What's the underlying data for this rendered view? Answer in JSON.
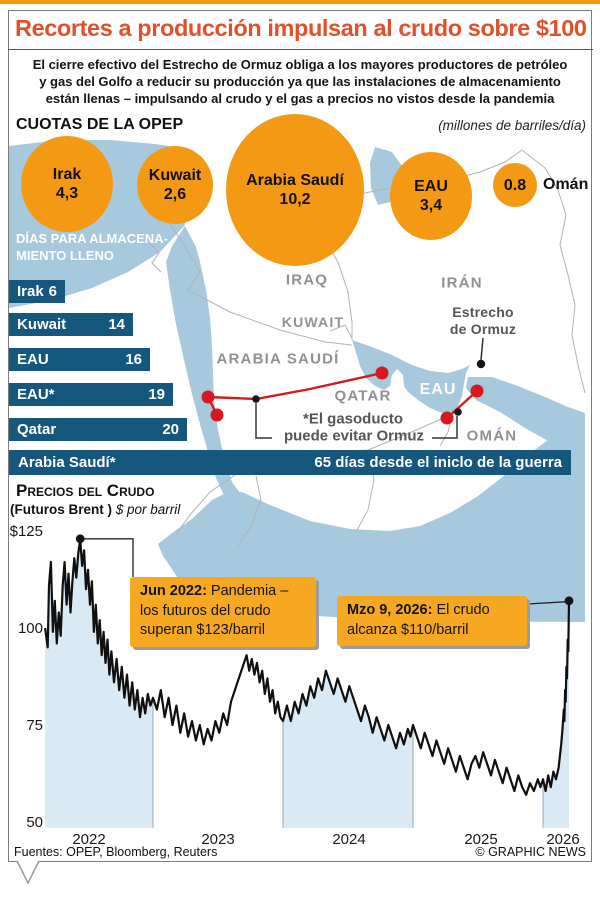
{
  "header": {
    "title": "Recortes a producción impulsan al crudo sobre $100",
    "intro_lines": [
      "El cierre efectivo del Estrecho de Ormuz obliga a los mayores productores de petróleo",
      "y gas del Golfo a reducir su producción ya que las instalaciones de almacenamiento",
      "están llenas – impulsando al crudo y el gas a precios no vistos desde la pandemia"
    ]
  },
  "opec": {
    "heading": "CUOTAS DE LA OPEP",
    "unit": "(millones de barriles/día)",
    "circles": [
      {
        "name": "Irak",
        "value": "4,3"
      },
      {
        "name": "Kuwait",
        "value": "2,6"
      },
      {
        "name": "Arabia Saudí",
        "value": "10,2"
      },
      {
        "name": "EAU",
        "value": "3,4"
      },
      {
        "name": "",
        "value": "0.8"
      }
    ],
    "oman_label": "Omán"
  },
  "storage": {
    "heading_lines": [
      "DÍAS PARA ALMACENA-",
      "MIENTO LLENO"
    ],
    "bars": [
      {
        "label": "Irak",
        "value": "6"
      },
      {
        "label": "Kuwait",
        "value": "14"
      },
      {
        "label": "EAU",
        "value": "16"
      },
      {
        "label": "EAU*",
        "value": "19"
      },
      {
        "label": "Qatar",
        "value": "20"
      }
    ],
    "saudi_bar": {
      "label": "Arabia Saudí*",
      "note": "65 días desde el iniclo de la guerra"
    }
  },
  "map": {
    "labels": {
      "iraq": "IRAQ",
      "iran": "IRÁN",
      "kuwait": "KUWAIT",
      "saudi": "ARABIA SAUDÍ",
      "qatar": "QATAR",
      "eau": "EAU",
      "oman": "OMÁN"
    },
    "strait_lines": [
      "Estrecho",
      "de Ormuz"
    ],
    "pipeline_note_lines": [
      "*El gasoducto",
      "puede evitar Ormuz"
    ]
  },
  "chart_data": {
    "type": "line",
    "title": "Precios del Crudo",
    "subtitle_bold": "(Futuros Brent )",
    "subtitle_italic": " $ por barril",
    "ylabel": "$ por barril",
    "ylim": [
      50,
      125
    ],
    "yticks": [
      {
        "v": 125,
        "label": "$125"
      },
      {
        "v": 100,
        "label": "100"
      },
      {
        "v": 75,
        "label": "75"
      },
      {
        "v": 50,
        "label": "50"
      }
    ],
    "xticks": [
      "2022",
      "2023",
      "2024",
      "2025",
      "2026"
    ],
    "grid": false,
    "legend": "none",
    "fill_bands": [
      [
        2022.17,
        2023.0
      ],
      [
        2024.0,
        2025.0
      ],
      [
        2026.0,
        2026.2
      ]
    ],
    "year_lines": [
      2023,
      2024,
      2025,
      2026
    ],
    "series": [
      {
        "name": "Brent",
        "points": [
          [
            2022.17,
            100
          ],
          [
            2022.19,
            95
          ],
          [
            2022.2,
            111
          ],
          [
            2022.215,
            117
          ],
          [
            2022.23,
            99
          ],
          [
            2022.245,
            107
          ],
          [
            2022.26,
            96
          ],
          [
            2022.275,
            104
          ],
          [
            2022.29,
            98
          ],
          [
            2022.305,
            111
          ],
          [
            2022.32,
            117
          ],
          [
            2022.335,
            106
          ],
          [
            2022.35,
            114
          ],
          [
            2022.365,
            104
          ],
          [
            2022.38,
            112
          ],
          [
            2022.395,
            118
          ],
          [
            2022.41,
            113
          ],
          [
            2022.425,
            119
          ],
          [
            2022.44,
            123
          ],
          [
            2022.455,
            116
          ],
          [
            2022.47,
            120
          ],
          [
            2022.485,
            110
          ],
          [
            2022.5,
            115
          ],
          [
            2022.515,
            106
          ],
          [
            2022.53,
            112
          ],
          [
            2022.545,
            99
          ],
          [
            2022.56,
            106
          ],
          [
            2022.575,
            96
          ],
          [
            2022.59,
            102
          ],
          [
            2022.605,
            93
          ],
          [
            2022.62,
            99
          ],
          [
            2022.635,
            91
          ],
          [
            2022.65,
            97
          ],
          [
            2022.665,
            88
          ],
          [
            2022.68,
            94
          ],
          [
            2022.7,
            86
          ],
          [
            2022.72,
            92
          ],
          [
            2022.74,
            84
          ],
          [
            2022.76,
            90
          ],
          [
            2022.78,
            82
          ],
          [
            2022.8,
            88
          ],
          [
            2022.82,
            80
          ],
          [
            2022.84,
            86
          ],
          [
            2022.86,
            79
          ],
          [
            2022.88,
            84
          ],
          [
            2022.9,
            77
          ],
          [
            2022.92,
            82
          ],
          [
            2022.94,
            78
          ],
          [
            2022.96,
            83
          ],
          [
            2022.98,
            80
          ],
          [
            2023.0,
            82
          ],
          [
            2023.03,
            79
          ],
          [
            2023.06,
            84
          ],
          [
            2023.09,
            77
          ],
          [
            2023.12,
            82
          ],
          [
            2023.15,
            75
          ],
          [
            2023.18,
            80
          ],
          [
            2023.21,
            73
          ],
          [
            2023.24,
            78
          ],
          [
            2023.27,
            72
          ],
          [
            2023.3,
            76
          ],
          [
            2023.33,
            71
          ],
          [
            2023.36,
            75
          ],
          [
            2023.39,
            70
          ],
          [
            2023.42,
            74
          ],
          [
            2023.45,
            71
          ],
          [
            2023.48,
            76
          ],
          [
            2023.51,
            73
          ],
          [
            2023.54,
            78
          ],
          [
            2023.57,
            75
          ],
          [
            2023.6,
            81
          ],
          [
            2023.63,
            84
          ],
          [
            2023.66,
            87
          ],
          [
            2023.69,
            90
          ],
          [
            2023.72,
            93
          ],
          [
            2023.74,
            89
          ],
          [
            2023.76,
            92
          ],
          [
            2023.78,
            88
          ],
          [
            2023.8,
            91
          ],
          [
            2023.82,
            86
          ],
          [
            2023.84,
            89
          ],
          [
            2023.86,
            83
          ],
          [
            2023.88,
            87
          ],
          [
            2023.9,
            81
          ],
          [
            2023.92,
            84
          ],
          [
            2023.94,
            78
          ],
          [
            2023.96,
            81
          ],
          [
            2023.98,
            77
          ],
          [
            2024.0,
            76
          ],
          [
            2024.03,
            80
          ],
          [
            2024.06,
            76
          ],
          [
            2024.09,
            81
          ],
          [
            2024.12,
            78
          ],
          [
            2024.15,
            83
          ],
          [
            2024.18,
            80
          ],
          [
            2024.21,
            85
          ],
          [
            2024.24,
            82
          ],
          [
            2024.27,
            87
          ],
          [
            2024.3,
            84
          ],
          [
            2024.33,
            89
          ],
          [
            2024.36,
            86
          ],
          [
            2024.39,
            83
          ],
          [
            2024.42,
            87
          ],
          [
            2024.45,
            84
          ],
          [
            2024.48,
            81
          ],
          [
            2024.51,
            85
          ],
          [
            2024.54,
            82
          ],
          [
            2024.57,
            79
          ],
          [
            2024.6,
            76
          ],
          [
            2024.63,
            80
          ],
          [
            2024.66,
            77
          ],
          [
            2024.69,
            73
          ],
          [
            2024.72,
            77
          ],
          [
            2024.75,
            74
          ],
          [
            2024.78,
            71
          ],
          [
            2024.81,
            75
          ],
          [
            2024.84,
            72
          ],
          [
            2024.87,
            69
          ],
          [
            2024.9,
            73
          ],
          [
            2024.93,
            70
          ],
          [
            2024.96,
            74
          ],
          [
            2024.98,
            72
          ],
          [
            2025.0,
            75
          ],
          [
            2025.03,
            72
          ],
          [
            2025.06,
            69
          ],
          [
            2025.09,
            73
          ],
          [
            2025.12,
            70
          ],
          [
            2025.15,
            67
          ],
          [
            2025.18,
            71
          ],
          [
            2025.21,
            68
          ],
          [
            2025.24,
            65
          ],
          [
            2025.27,
            69
          ],
          [
            2025.3,
            66
          ],
          [
            2025.33,
            63
          ],
          [
            2025.36,
            67
          ],
          [
            2025.39,
            64
          ],
          [
            2025.42,
            61
          ],
          [
            2025.45,
            65
          ],
          [
            2025.48,
            67
          ],
          [
            2025.51,
            64
          ],
          [
            2025.54,
            68
          ],
          [
            2025.57,
            65
          ],
          [
            2025.6,
            62
          ],
          [
            2025.63,
            66
          ],
          [
            2025.66,
            63
          ],
          [
            2025.69,
            60
          ],
          [
            2025.72,
            64
          ],
          [
            2025.75,
            61
          ],
          [
            2025.78,
            58
          ],
          [
            2025.81,
            62
          ],
          [
            2025.84,
            59
          ],
          [
            2025.87,
            57
          ],
          [
            2025.9,
            60
          ],
          [
            2025.93,
            58
          ],
          [
            2025.96,
            61
          ],
          [
            2025.98,
            59
          ],
          [
            2026.0,
            61
          ],
          [
            2026.02,
            58
          ],
          [
            2026.04,
            62
          ],
          [
            2026.06,
            59
          ],
          [
            2026.08,
            63
          ],
          [
            2026.1,
            61
          ],
          [
            2026.12,
            64
          ],
          [
            2026.13,
            67
          ],
          [
            2026.14,
            70
          ],
          [
            2026.15,
            74
          ],
          [
            2026.16,
            79
          ],
          [
            2026.165,
            76
          ],
          [
            2026.17,
            84
          ],
          [
            2026.175,
            81
          ],
          [
            2026.18,
            90
          ],
          [
            2026.185,
            87
          ],
          [
            2026.19,
            97
          ],
          [
            2026.195,
            94
          ],
          [
            2026.2,
            107
          ]
        ]
      }
    ],
    "annotations": [
      {
        "lead": "Jun 2022:",
        "lines": [
          "Pandemia –",
          "los futuros del crudo",
          "superan $123/barril"
        ],
        "value_ref": "$123/barril"
      },
      {
        "lead": "Mzo 9, 2026:",
        "lines": [
          "El crudo",
          "alcanza $110/barril"
        ],
        "value_ref": "$110/barril"
      }
    ]
  },
  "footer": {
    "sources": "Fuentes: OPEP, Bloomberg, Reuters",
    "credit": "© GRAPHIC NEWS"
  },
  "colors": {
    "accent_orange": "#F49914",
    "annotation_orange": "#F7A823",
    "title_red": "#E0502A",
    "bar_blue": "#16587D",
    "water_blue": "#A6C9DD",
    "chart_fill_blue": "#D9EAF5",
    "pipeline_red": "#D6191F",
    "line_black": "#101010"
  }
}
